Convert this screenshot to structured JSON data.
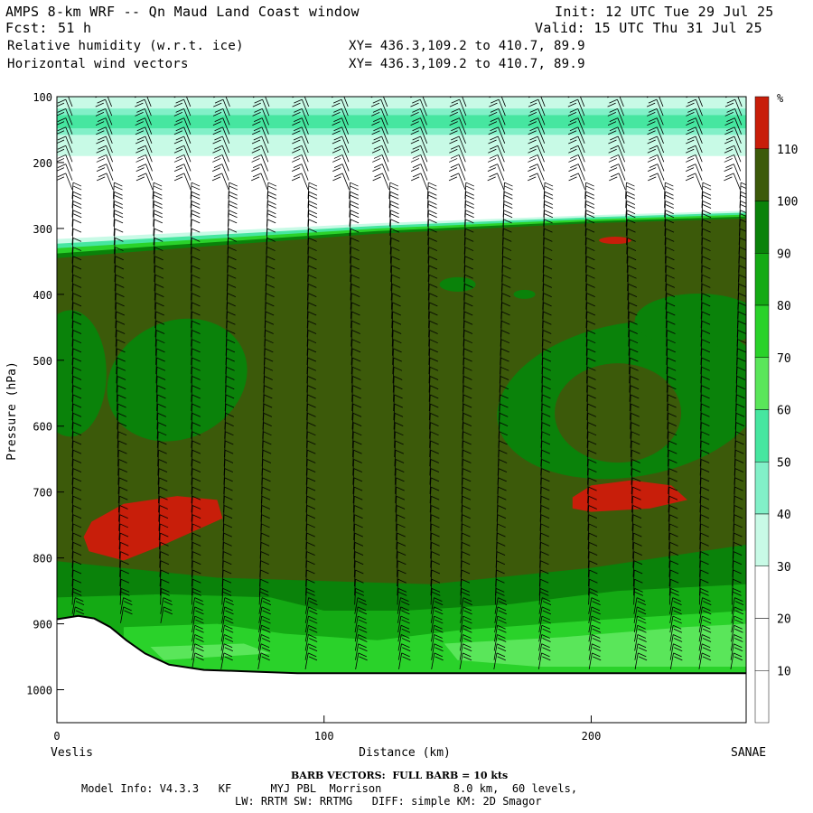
{
  "header": {
    "title": "AMPS 8-km WRF -- Qn Maud Land Coast window",
    "forecast_label": "Fcst:",
    "forecast_value": "51 h",
    "init": "Init: 12 UTC Tue 29 Jul 25",
    "valid": "Valid: 15 UTC Thu 31 Jul 25",
    "field1": "Relative humidity (w.r.t. ice)",
    "field2": "Horizontal wind vectors",
    "xy1": "XY= 436.3,109.2 to 410.7, 89.9",
    "xy2": "XY= 436.3,109.2 to 410.7, 89.9"
  },
  "chart_data": {
    "type": "heatmap",
    "ylabel": "Pressure (hPa)",
    "xlabel": "Distance (km)",
    "x_range": [
      0,
      258
    ],
    "y_range": [
      100,
      1050
    ],
    "y_scale": "linear-inverted",
    "y_ticks": [
      100,
      200,
      300,
      400,
      500,
      600,
      700,
      800,
      900,
      1000
    ],
    "x_ticks": [
      0,
      100,
      200
    ],
    "x_endpoints": {
      "left": "Veslis",
      "right": "SANAE"
    },
    "colorbar": {
      "unit": "%",
      "levels": [
        10,
        20,
        30,
        40,
        50,
        60,
        70,
        80,
        90,
        100,
        110
      ],
      "colors": [
        "#ffffff",
        "#ffffff",
        "#ffffff",
        "#c8fae6",
        "#82f0c8",
        "#46e6a0",
        "#5ae65a",
        "#2ad22a",
        "#14aa14",
        "#0a820a",
        "#3c5a0a",
        "#c81e0a"
      ]
    },
    "colors": {
      "rh_100_110": "#3c5a0a",
      "rh_90_100": "#0a820a",
      "rh_80_90": "#14aa14",
      "rh_70_80": "#2ad22a",
      "rh_60_70": "#5ae65a",
      "rh_50_60": "#46e6a0",
      "rh_40_50": "#82f0c8",
      "rh_30_40": "#c8fae6",
      "rh_gt_110": "#c81e0a",
      "terrain": "#ffffff"
    }
  },
  "footer": {
    "barb_note": "BARB VECTORS:  FULL BARB = 10 kts",
    "model_line1": "Model Info: V4.3.3   KF      MYJ PBL  Morrison           8.0 km,  60 levels,",
    "model_line2": "LW: RRTM SW: RRTMG   DIFF: simple KM: 2D Smagor"
  }
}
